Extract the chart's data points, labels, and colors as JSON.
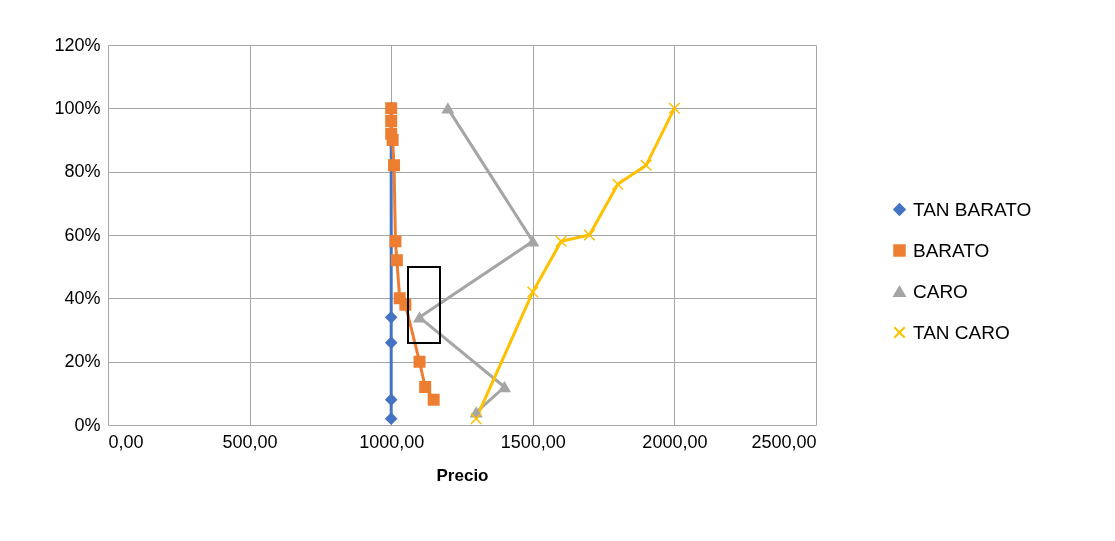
{
  "chart_data": {
    "type": "line",
    "xlabel": "Precio",
    "xlim": [
      0,
      2500
    ],
    "xticks": [
      {
        "value": 0,
        "label": "0,00"
      },
      {
        "value": 500,
        "label": "500,00"
      },
      {
        "value": 1000,
        "label": "1000,00"
      },
      {
        "value": 1500,
        "label": "1500,00"
      },
      {
        "value": 2000,
        "label": "2000,00"
      },
      {
        "value": 2500,
        "label": "2500,00"
      }
    ],
    "ylim": [
      0,
      120
    ],
    "yticks": [
      {
        "value": 0,
        "label": "0%"
      },
      {
        "value": 20,
        "label": "20%"
      },
      {
        "value": 40,
        "label": "40%"
      },
      {
        "value": 60,
        "label": "60%"
      },
      {
        "value": 80,
        "label": "80%"
      },
      {
        "value": 100,
        "label": "100%"
      },
      {
        "value": 120,
        "label": "120%"
      }
    ],
    "grid": true,
    "legend": "right",
    "series": [
      {
        "name": "TAN BARATO",
        "color": "#4472c4",
        "marker": "diamond",
        "x": [
          1000,
          1000,
          1000,
          1000,
          1000
        ],
        "values": [
          2,
          8,
          26,
          34,
          100
        ]
      },
      {
        "name": "BARATO",
        "color": "#ed7d31",
        "marker": "square",
        "x": [
          1000,
          1000,
          1000,
          1005,
          1010,
          1015,
          1020,
          1030,
          1050,
          1100,
          1120,
          1150
        ],
        "values": [
          100,
          96,
          92,
          90,
          82,
          58,
          52,
          40,
          38,
          20,
          12,
          8
        ]
      },
      {
        "name": "CARO",
        "color": "#a5a5a5",
        "marker": "triangle",
        "x": [
          1200,
          1500,
          1100,
          1400,
          1300
        ],
        "values": [
          100,
          58,
          34,
          12,
          4
        ]
      },
      {
        "name": "TAN CARO",
        "color": "#ffc000",
        "marker": "cross",
        "x": [
          1300,
          1500,
          1600,
          1700,
          1800,
          1900,
          2000
        ],
        "values": [
          2,
          42,
          58,
          60,
          76,
          82,
          100
        ]
      }
    ]
  }
}
